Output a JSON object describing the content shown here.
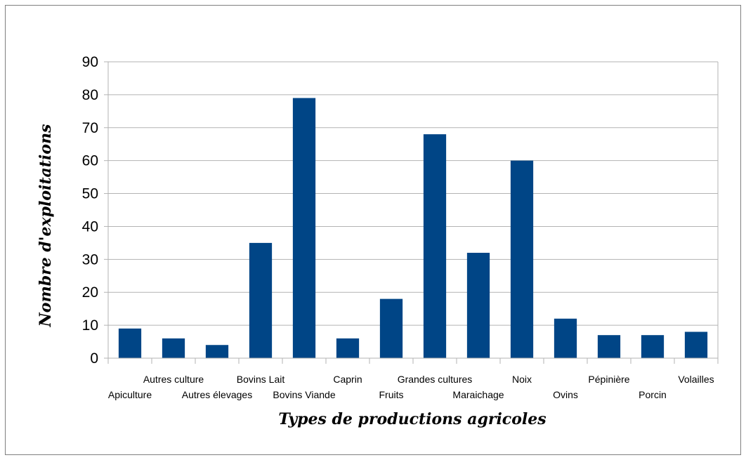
{
  "chart_data": {
    "type": "bar",
    "title": "",
    "xlabel": "Types de productions agricoles",
    "ylabel": "Nombre d'exploitations",
    "categories": [
      "Apiculture",
      "Autres culture",
      "Autres élevages",
      "Bovins Lait",
      "Bovins Viande",
      "Caprin",
      "Fruits",
      "Grandes cultures",
      "Maraichage",
      "Noix",
      "Ovins",
      "Pépinière",
      "Porcin",
      "Volailles"
    ],
    "values": [
      9,
      6,
      4,
      35,
      79,
      6,
      18,
      68,
      32,
      60,
      12,
      7,
      7,
      8
    ],
    "ylim": [
      0,
      90
    ],
    "yticks": [
      0,
      10,
      20,
      30,
      40,
      50,
      60,
      70,
      80,
      90
    ],
    "grid": true,
    "legend": "none",
    "colors": {
      "bar": "#004586",
      "grid": "#b3b3b3",
      "axis": "#b3b3b3"
    }
  }
}
